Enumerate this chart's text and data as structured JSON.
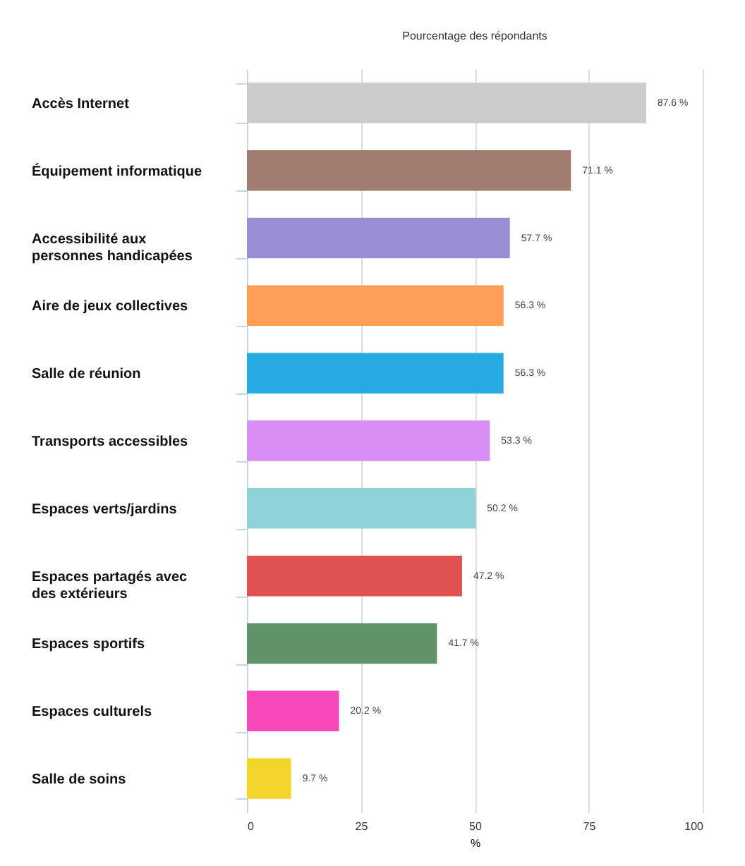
{
  "chart_data": {
    "type": "bar",
    "orientation": "horizontal",
    "subtitle": "Pourcentage des répondants",
    "xlabel": "%",
    "categories": [
      "Accès Internet",
      "Équipement informatique",
      "Accessibilité aux personnes handicapées",
      "Aire de jeux collectives",
      "Salle de réunion",
      "Transports accessibles",
      "Espaces verts/jardins",
      "Espaces partagés avec des extérieurs",
      "Espaces sportifs",
      "Espaces culturels",
      "Salle de soins"
    ],
    "values": [
      87.6,
      71.1,
      57.7,
      56.3,
      56.3,
      53.3,
      50.2,
      47.2,
      41.7,
      20.2,
      9.7
    ],
    "value_labels": [
      "87.6 %",
      "71.1 %",
      "57.7 %",
      "56.3 %",
      "56.3 %",
      "53.3 %",
      "50.2 %",
      "47.2 %",
      "41.7 %",
      "20.2 %",
      "9.7 %"
    ],
    "colors": [
      "#cccccc",
      "#a07d6e",
      "#9a8fd4",
      "#ff9f55",
      "#27a9e1",
      "#d98ef5",
      "#8fd3d8",
      "#e05252",
      "#5e9467",
      "#f748b9",
      "#f4d52c"
    ],
    "xlim": [
      0,
      100
    ],
    "xticks": [
      0,
      25,
      50,
      75,
      100
    ],
    "grid": "x",
    "legend": false
  }
}
